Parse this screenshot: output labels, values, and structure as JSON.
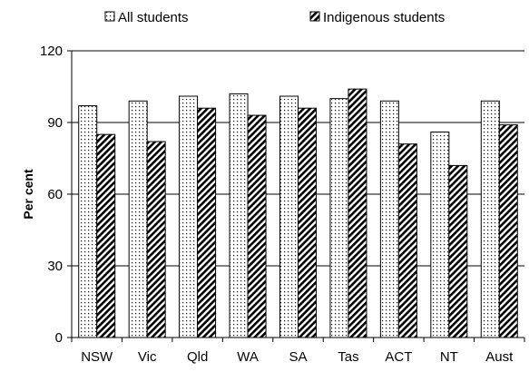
{
  "chart_data": {
    "type": "bar",
    "title": "",
    "xlabel": "",
    "ylabel": "Per cent",
    "ylim": [
      0,
      120
    ],
    "yticks": [
      0,
      30,
      60,
      90,
      120
    ],
    "grid": true,
    "legend_position": "top",
    "categories": [
      "NSW",
      "Vic",
      "Qld",
      "WA",
      "SA",
      "Tas",
      "ACT",
      "NT",
      "Aust"
    ],
    "series": [
      {
        "name": "All students",
        "pattern": "dots",
        "values": [
          97,
          99,
          101,
          102,
          101,
          100,
          99,
          86,
          99
        ]
      },
      {
        "name": "Indigenous students",
        "pattern": "diagonal-stripes",
        "values": [
          85,
          82,
          96,
          93,
          96,
          104,
          81,
          72,
          89
        ]
      }
    ]
  }
}
